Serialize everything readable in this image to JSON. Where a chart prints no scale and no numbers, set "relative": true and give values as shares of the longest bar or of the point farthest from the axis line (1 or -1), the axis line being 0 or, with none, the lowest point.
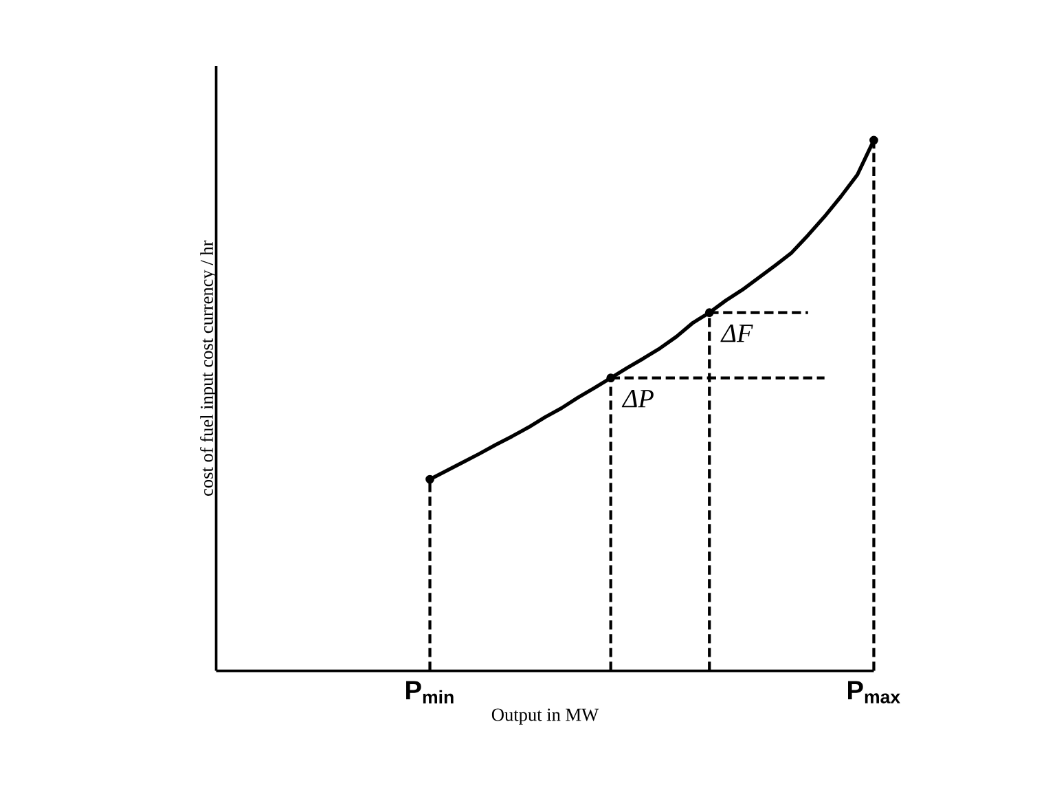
{
  "chart_data": {
    "type": "line",
    "relative": true,
    "xlabel": "Output in MW",
    "ylabel": "cost of fuel input cost currency / hr",
    "categories": [
      null,
      null,
      null,
      null,
      null,
      null,
      null,
      null,
      null,
      null,
      null,
      null,
      null,
      "**P**$_{min}$",
      null,
      null,
      null,
      null,
      null,
      null,
      null,
      null,
      null,
      null,
      null,
      null,
      null,
      null,
      null,
      null,
      null,
      null,
      null,
      null,
      null,
      null,
      null,
      null,
      null,
      null,
      "**P**$_{max}$"
    ],
    "marker": "none",
    "series": [
      {
        "color": "#000000",
        "line_style": "solid",
        "values": [
          null,
          null,
          null,
          null,
          null,
          null,
          null,
          null,
          null,
          null,
          null,
          null,
          null,
          0.361,
          0.377,
          0.393,
          0.409,
          0.426,
          0.442,
          0.459,
          0.478,
          0.495,
          0.515,
          0.533,
          0.552,
          0.571,
          0.589,
          0.608,
          0.63,
          0.656,
          0.675,
          0.698,
          0.718,
          0.741,
          0.764,
          0.788,
          0.821,
          0.856,
          0.894,
          0.935,
          1.0
        ]
      },
      {
        "type": "lollipop",
        "marker": "circle",
        "color": "#000000",
        "line_style": "dashed",
        "values": [
          null,
          null,
          null,
          null,
          null,
          null,
          null,
          null,
          null,
          null,
          null,
          null,
          null,
          0.361,
          null,
          null,
          null,
          null,
          null,
          null,
          null,
          null,
          null,
          null,
          0.552,
          null,
          null,
          null,
          null,
          null,
          0.675,
          null,
          null,
          null,
          null,
          null,
          null,
          null,
          null,
          null,
          1.0
        ]
      },
      {
        "color": "#000000",
        "line_style": "dashed",
        "values": [
          null,
          null,
          null,
          null,
          null,
          null,
          null,
          null,
          null,
          null,
          null,
          null,
          null,
          null,
          null,
          null,
          null,
          null,
          null,
          null,
          null,
          null,
          null,
          null,
          0.552,
          0.552,
          0.552,
          0.552,
          0.552,
          0.552,
          0.552,
          0.552,
          0.552,
          0.552,
          0.552,
          0.552,
          0.552,
          0.552,
          null,
          null,
          null
        ]
      },
      {
        "color": "#000000",
        "line_style": "dashed",
        "values": [
          null,
          null,
          null,
          null,
          null,
          null,
          null,
          null,
          null,
          null,
          null,
          null,
          null,
          null,
          null,
          null,
          null,
          null,
          null,
          null,
          null,
          null,
          null,
          null,
          null,
          null,
          null,
          null,
          null,
          null,
          0.675,
          0.675,
          0.675,
          0.675,
          0.675,
          0.675,
          0.675,
          null,
          null,
          null,
          null
        ]
      }
    ],
    "annotations": [
      "ΔP",
      "ΔF"
    ]
  }
}
